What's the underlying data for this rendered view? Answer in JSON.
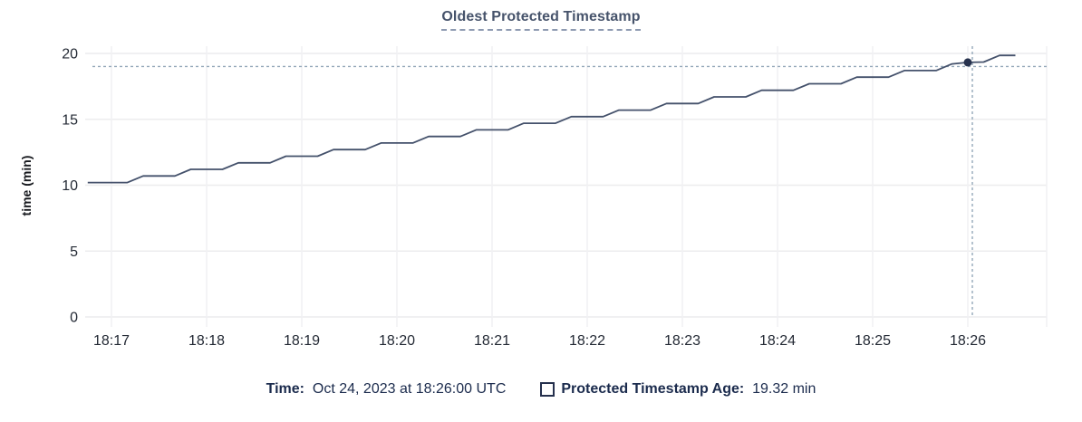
{
  "chart": {
    "title": "Oldest Protected Timestamp",
    "y_axis_label": "time (min)"
  },
  "legend": {
    "time_label": "Time:",
    "time_value": "Oct 24, 2023 at 18:26:00 UTC",
    "series_label": "Protected Timestamp Age:",
    "series_value": "19.32 min"
  },
  "colors": {
    "line": "#44516b",
    "dot": "#27324e",
    "crosshair": "#93a7b8",
    "grid_horizontal": "#ececee",
    "grid_vertical": "#f1f1f3",
    "tick_text": "#242a35",
    "title_text": "#46536b",
    "legend_text": "#1b2b4d"
  },
  "chart_data": {
    "type": "line",
    "title": "Oldest Protected Timestamp",
    "xlabel": "",
    "ylabel": "time (min)",
    "ylim": [
      0,
      20
    ],
    "y_ticks": [
      0,
      5,
      10,
      15,
      20
    ],
    "x_tick_labels": [
      "18:17",
      "18:18",
      "18:19",
      "18:20",
      "18:21",
      "18:22",
      "18:23",
      "18:24",
      "18:25",
      "18:26"
    ],
    "grid": true,
    "legend_position": "bottom",
    "hover_point": {
      "time": "18:26:00",
      "value": 19.32,
      "value_label": "19.32 min",
      "date_label": "Oct 24, 2023 at 18:26:00 UTC"
    },
    "series": [
      {
        "name": "Protected Timestamp Age",
        "unit": "min",
        "points": [
          [
            "18:16:45",
            10.2
          ],
          [
            "18:17:00",
            10.2
          ],
          [
            "18:17:10",
            10.2
          ],
          [
            "18:17:20",
            10.7
          ],
          [
            "18:17:30",
            10.7
          ],
          [
            "18:17:40",
            10.7
          ],
          [
            "18:17:50",
            11.2
          ],
          [
            "18:18:00",
            11.2
          ],
          [
            "18:18:10",
            11.2
          ],
          [
            "18:18:20",
            11.7
          ],
          [
            "18:18:30",
            11.7
          ],
          [
            "18:18:40",
            11.7
          ],
          [
            "18:18:50",
            12.2
          ],
          [
            "18:19:00",
            12.2
          ],
          [
            "18:19:10",
            12.2
          ],
          [
            "18:19:20",
            12.7
          ],
          [
            "18:19:30",
            12.7
          ],
          [
            "18:19:40",
            12.7
          ],
          [
            "18:19:50",
            13.2
          ],
          [
            "18:20:00",
            13.2
          ],
          [
            "18:20:10",
            13.2
          ],
          [
            "18:20:20",
            13.7
          ],
          [
            "18:20:30",
            13.7
          ],
          [
            "18:20:40",
            13.7
          ],
          [
            "18:20:50",
            14.2
          ],
          [
            "18:21:00",
            14.2
          ],
          [
            "18:21:10",
            14.2
          ],
          [
            "18:21:20",
            14.7
          ],
          [
            "18:21:30",
            14.7
          ],
          [
            "18:21:40",
            14.7
          ],
          [
            "18:21:50",
            15.2
          ],
          [
            "18:22:00",
            15.2
          ],
          [
            "18:22:10",
            15.2
          ],
          [
            "18:22:20",
            15.7
          ],
          [
            "18:22:30",
            15.7
          ],
          [
            "18:22:40",
            15.7
          ],
          [
            "18:22:50",
            16.2
          ],
          [
            "18:23:00",
            16.2
          ],
          [
            "18:23:10",
            16.2
          ],
          [
            "18:23:20",
            16.7
          ],
          [
            "18:23:30",
            16.7
          ],
          [
            "18:23:40",
            16.7
          ],
          [
            "18:23:50",
            17.2
          ],
          [
            "18:24:00",
            17.2
          ],
          [
            "18:24:10",
            17.2
          ],
          [
            "18:24:20",
            17.7
          ],
          [
            "18:24:30",
            17.7
          ],
          [
            "18:24:40",
            17.7
          ],
          [
            "18:24:50",
            18.2
          ],
          [
            "18:25:00",
            18.2
          ],
          [
            "18:25:10",
            18.2
          ],
          [
            "18:25:20",
            18.7
          ],
          [
            "18:25:30",
            18.7
          ],
          [
            "18:25:40",
            18.7
          ],
          [
            "18:25:50",
            19.2
          ],
          [
            "18:26:00",
            19.32
          ],
          [
            "18:26:10",
            19.35
          ],
          [
            "18:26:20",
            19.85
          ],
          [
            "18:26:30",
            19.85
          ]
        ]
      }
    ]
  }
}
